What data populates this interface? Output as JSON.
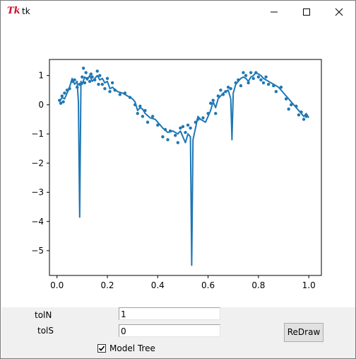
{
  "window": {
    "title": "tk",
    "icon": "tk-feather-icon",
    "logo_text": "Tk",
    "controls": [
      "minimize-icon",
      "maximize-icon",
      "close-icon"
    ]
  },
  "chart_data": {
    "type": "line+scatter",
    "title": "",
    "xlabel": "",
    "ylabel": "",
    "xlim": [
      -0.03,
      1.05
    ],
    "ylim": [
      -5.85,
      1.55
    ],
    "xticks": [
      0.0,
      0.2,
      0.4,
      0.6,
      0.8,
      1.0
    ],
    "xtick_labels": [
      "0.0",
      "0.2",
      "0.4",
      "0.6",
      "0.8",
      "1.0"
    ],
    "yticks": [
      1,
      0,
      -1,
      -2,
      -3,
      -4,
      -5
    ],
    "ytick_labels": [
      "1",
      "0",
      "−1",
      "−2",
      "−3",
      "−4",
      "−5"
    ],
    "grid": false,
    "color": "#1f77b4",
    "line": {
      "x": [
        0.01,
        0.02,
        0.03,
        0.04,
        0.05,
        0.06,
        0.07,
        0.08,
        0.085,
        0.09,
        0.095,
        0.1,
        0.11,
        0.12,
        0.13,
        0.14,
        0.15,
        0.16,
        0.17,
        0.18,
        0.19,
        0.2,
        0.21,
        0.22,
        0.24,
        0.26,
        0.28,
        0.3,
        0.31,
        0.32,
        0.33,
        0.34,
        0.35,
        0.37,
        0.39,
        0.41,
        0.42,
        0.44,
        0.46,
        0.48,
        0.49,
        0.5,
        0.51,
        0.52,
        0.53,
        0.535,
        0.54,
        0.55,
        0.56,
        0.57,
        0.59,
        0.61,
        0.62,
        0.63,
        0.64,
        0.65,
        0.66,
        0.67,
        0.68,
        0.69,
        0.695,
        0.7,
        0.71,
        0.72,
        0.73,
        0.74,
        0.75,
        0.76,
        0.77,
        0.78,
        0.79,
        0.8,
        0.81,
        0.82,
        0.83,
        0.84,
        0.85,
        0.86,
        0.88,
        0.9,
        0.92,
        0.93,
        0.94,
        0.95,
        0.96,
        0.97,
        0.98,
        0.99,
        1.0
      ],
      "y": [
        0.1,
        0.25,
        0.2,
        0.4,
        0.6,
        0.9,
        0.7,
        0.8,
        0.1,
        -3.85,
        0.8,
        0.7,
        0.95,
        0.85,
        1.0,
        0.8,
        0.9,
        1.0,
        0.85,
        0.9,
        0.75,
        0.8,
        0.55,
        0.6,
        0.45,
        0.4,
        0.3,
        0.2,
        0.1,
        -0.2,
        -0.1,
        -0.15,
        -0.3,
        -0.45,
        -0.5,
        -0.7,
        -0.8,
        -0.95,
        -0.9,
        -1.0,
        -0.9,
        -1.1,
        -1.3,
        -1.0,
        -1.1,
        -5.5,
        -1.2,
        -0.8,
        -0.4,
        -0.5,
        -0.6,
        -0.2,
        0.1,
        -0.1,
        0.2,
        0.3,
        0.4,
        0.45,
        0.5,
        0.2,
        -1.2,
        0.4,
        0.7,
        0.8,
        0.9,
        0.95,
        0.9,
        0.8,
        0.95,
        1.0,
        1.1,
        1.05,
        1.0,
        0.9,
        0.85,
        0.8,
        0.75,
        0.7,
        0.6,
        0.4,
        0.2,
        0.1,
        0.0,
        -0.1,
        -0.2,
        -0.3,
        -0.4,
        -0.3,
        -0.45
      ]
    },
    "points": {
      "x": [
        0.01,
        0.015,
        0.02,
        0.025,
        0.03,
        0.04,
        0.05,
        0.06,
        0.07,
        0.08,
        0.09,
        0.1,
        0.105,
        0.11,
        0.115,
        0.12,
        0.13,
        0.135,
        0.14,
        0.15,
        0.16,
        0.165,
        0.17,
        0.18,
        0.19,
        0.2,
        0.21,
        0.22,
        0.23,
        0.25,
        0.27,
        0.29,
        0.31,
        0.32,
        0.33,
        0.34,
        0.35,
        0.36,
        0.38,
        0.4,
        0.42,
        0.43,
        0.44,
        0.45,
        0.47,
        0.48,
        0.49,
        0.5,
        0.51,
        0.52,
        0.53,
        0.55,
        0.56,
        0.58,
        0.6,
        0.61,
        0.62,
        0.63,
        0.64,
        0.65,
        0.66,
        0.67,
        0.68,
        0.69,
        0.71,
        0.72,
        0.73,
        0.74,
        0.75,
        0.76,
        0.77,
        0.78,
        0.79,
        0.8,
        0.81,
        0.82,
        0.83,
        0.84,
        0.86,
        0.87,
        0.89,
        0.91,
        0.92,
        0.93,
        0.95,
        0.96,
        0.97,
        0.98,
        0.99
      ],
      "y": [
        0.15,
        0.05,
        0.3,
        0.1,
        0.4,
        0.5,
        0.55,
        0.8,
        0.85,
        0.6,
        0.7,
        0.95,
        1.25,
        0.75,
        1.1,
        0.9,
        0.8,
        1.05,
        0.95,
        0.85,
        1.15,
        0.7,
        1.0,
        0.7,
        0.55,
        0.9,
        0.45,
        0.75,
        0.5,
        0.35,
        0.4,
        0.25,
        0.0,
        -0.3,
        -0.05,
        -0.4,
        -0.2,
        -0.6,
        -0.4,
        -0.7,
        -1.1,
        -0.85,
        -1.2,
        -0.9,
        -1.05,
        -1.3,
        -0.8,
        -0.75,
        -0.95,
        -0.7,
        -0.8,
        -0.6,
        -0.5,
        -0.45,
        -0.3,
        0.05,
        0.15,
        -0.3,
        0.3,
        0.5,
        0.35,
        0.45,
        0.6,
        0.55,
        0.75,
        0.85,
        0.65,
        1.1,
        1.0,
        0.75,
        1.1,
        0.9,
        1.1,
        0.95,
        0.85,
        0.75,
        0.95,
        0.7,
        0.65,
        0.45,
        0.6,
        0.2,
        -0.15,
        0.0,
        -0.05,
        -0.35,
        -0.25,
        -0.5,
        -0.4
      ]
    }
  },
  "controls": {
    "tolN_label": "tolN",
    "tolN_value": "1",
    "tolS_label": "tolS",
    "tolS_value": "0",
    "model_tree_label": "Model Tree",
    "model_tree_checked": true,
    "redraw_label": "ReDraw"
  }
}
